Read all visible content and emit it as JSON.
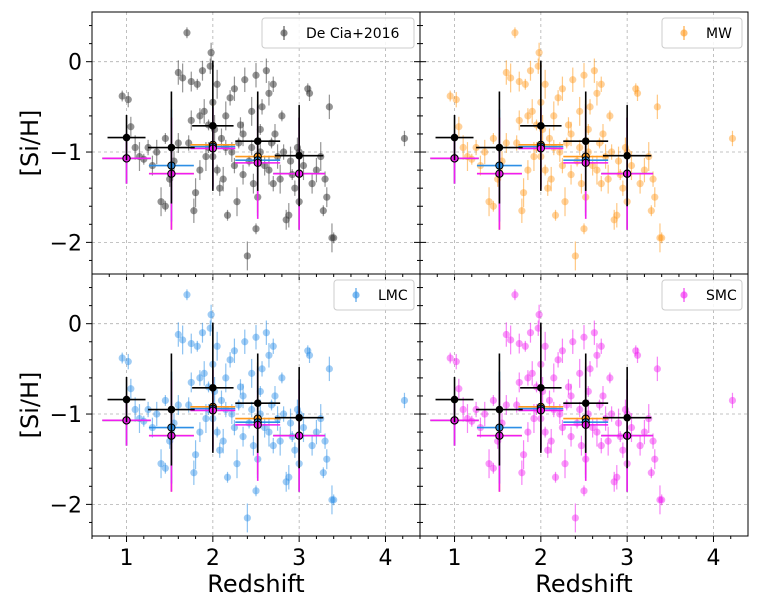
{
  "colors": {
    "MW": "#ff9a1f",
    "LMC": "#2d8fe6",
    "SMC": "#f01ef0",
    "DeCia": "#3c3c3c",
    "binned": "#000000",
    "zero_mw": "#ff9a1f",
    "zero_lmc": "#2d8fe6",
    "zero_smc": "#f01ef0"
  },
  "chart_data": {
    "type": "scatter",
    "layout": "2x2 shared axes",
    "xlabel": "Redshift",
    "ylabel": "[Si/H]",
    "xlim": [
      0.6,
      4.4
    ],
    "ylim": [
      -2.35,
      0.55
    ],
    "xticks": [
      1,
      2,
      3,
      4
    ],
    "yticks": [
      0,
      -1,
      -2
    ],
    "xtick_labels": [
      "1",
      "2",
      "3",
      "4"
    ],
    "ytick_labels": [
      "0",
      "−1",
      "−2"
    ],
    "grid": true,
    "panels": [
      {
        "legend": "De Cia+2016",
        "color_key": "DeCia",
        "legend_position": "top-right"
      },
      {
        "legend": "MW",
        "color_key": "MW",
        "legend_position": "top-right"
      },
      {
        "legend": "LMC",
        "color_key": "LMC",
        "legend_position": "top-right"
      },
      {
        "legend": "SMC",
        "color_key": "SMC",
        "legend_position": "top-right"
      }
    ],
    "scatter_points": [
      [
        0.95,
        -0.38
      ],
      [
        1.02,
        -0.42
      ],
      [
        1.05,
        -0.72
      ],
      [
        1.1,
        -0.95
      ],
      [
        1.15,
        -1.05
      ],
      [
        1.2,
        -1.08
      ],
      [
        1.25,
        -0.95
      ],
      [
        1.3,
        -1.15
      ],
      [
        1.35,
        -1.0
      ],
      [
        1.4,
        -1.55
      ],
      [
        1.45,
        -1.6
      ],
      [
        1.5,
        -1.3
      ],
      [
        1.55,
        -1.1
      ],
      [
        1.6,
        -0.12
      ],
      [
        1.65,
        -0.18
      ],
      [
        1.7,
        0.32
      ],
      [
        1.72,
        -0.9
      ],
      [
        1.75,
        -0.22
      ],
      [
        1.78,
        -1.65
      ],
      [
        1.8,
        -1.45
      ],
      [
        1.82,
        -0.25
      ],
      [
        1.85,
        -0.6
      ],
      [
        1.88,
        -0.1
      ],
      [
        1.9,
        -0.55
      ],
      [
        1.92,
        -1.05
      ],
      [
        1.95,
        -0.95
      ],
      [
        1.97,
        -0.05
      ],
      [
        1.98,
        0.1
      ],
      [
        2.0,
        -0.45
      ],
      [
        2.02,
        -0.75
      ],
      [
        2.05,
        -1.2
      ],
      [
        2.08,
        -1.4
      ],
      [
        2.1,
        -0.85
      ],
      [
        2.12,
        -1.3
      ],
      [
        2.15,
        -0.6
      ],
      [
        2.17,
        -1.7
      ],
      [
        2.2,
        -0.4
      ],
      [
        2.22,
        -1.0
      ],
      [
        2.25,
        -0.3
      ],
      [
        2.28,
        -1.55
      ],
      [
        2.3,
        -0.9
      ],
      [
        2.32,
        -0.7
      ],
      [
        2.35,
        -1.25
      ],
      [
        2.37,
        -0.2
      ],
      [
        2.4,
        -2.15
      ],
      [
        2.42,
        -1.1
      ],
      [
        2.45,
        -0.95
      ],
      [
        2.47,
        -1.35
      ],
      [
        2.5,
        -0.15
      ],
      [
        2.52,
        -1.5
      ],
      [
        2.55,
        -0.75
      ],
      [
        2.57,
        -0.5
      ],
      [
        2.6,
        -1.15
      ],
      [
        2.62,
        -0.1
      ],
      [
        2.65,
        -1.2
      ],
      [
        2.68,
        -0.9
      ],
      [
        2.7,
        -1.35
      ],
      [
        2.72,
        -0.8
      ],
      [
        2.75,
        -1.05
      ],
      [
        2.78,
        -1.3
      ],
      [
        2.8,
        -0.6
      ],
      [
        2.82,
        -1.0
      ],
      [
        2.85,
        -1.75
      ],
      [
        2.88,
        -1.7
      ],
      [
        2.9,
        -1.1
      ],
      [
        2.92,
        -1.25
      ],
      [
        2.95,
        -1.4
      ],
      [
        2.98,
        -0.95
      ],
      [
        3.0,
        -1.55
      ],
      [
        3.05,
        -1.15
      ],
      [
        3.1,
        -0.3
      ],
      [
        3.12,
        -0.35
      ],
      [
        3.15,
        -1.35
      ],
      [
        3.2,
        -1.2
      ],
      [
        3.25,
        -1.05
      ],
      [
        3.28,
        -1.65
      ],
      [
        3.3,
        -1.3
      ],
      [
        3.32,
        -1.5
      ],
      [
        3.35,
        -0.5
      ],
      [
        3.38,
        -1.95
      ],
      [
        3.4,
        -1.95
      ],
      [
        4.22,
        -0.85
      ],
      [
        1.6,
        -0.9
      ],
      [
        2.0,
        -1.05
      ],
      [
        2.45,
        -0.55
      ],
      [
        1.95,
        -0.7
      ],
      [
        2.25,
        -1.15
      ],
      [
        1.85,
        -1.2
      ],
      [
        2.65,
        -0.35
      ],
      [
        2.55,
        -1.0
      ],
      [
        1.45,
        -0.85
      ],
      [
        2.15,
        -0.95
      ],
      [
        1.75,
        -0.65
      ],
      [
        2.35,
        -0.8
      ],
      [
        2.05,
        -0.25
      ],
      [
        2.5,
        -1.85
      ],
      [
        2.7,
        -0.25
      ],
      [
        3.0,
        -1.0
      ]
    ],
    "binned_points": [
      {
        "x": 1.0,
        "y": -0.84,
        "xerr": 0.22,
        "yerr": 0.25
      },
      {
        "x": 1.52,
        "y": -0.95,
        "xerr": 0.27,
        "yerr": 0.62
      },
      {
        "x": 2.0,
        "y": -0.71,
        "xerr": 0.24,
        "yerr": 0.72
      },
      {
        "x": 2.52,
        "y": -0.88,
        "xerr": 0.26,
        "yerr": 0.55
      },
      {
        "x": 3.0,
        "y": -1.04,
        "xerr": 0.28,
        "yerr": 0.56
      }
    ],
    "zeroed_points": [
      {
        "x": 1.0,
        "dx": 0.28,
        "MW": {
          "y": -1.07,
          "yerr": 0.28
        },
        "LMC": {
          "y": -1.07,
          "yerr": 0.28
        },
        "SMC": {
          "y": -1.07,
          "yerr": 0.28
        }
      },
      {
        "x": 1.52,
        "dx": 0.26,
        "MW": {
          "y": -1.24,
          "yerr": 0.62
        },
        "LMC": {
          "y": -1.15,
          "yerr": 0.62
        },
        "SMC": {
          "y": -1.24,
          "yerr": 0.62
        }
      },
      {
        "x": 2.0,
        "dx": 0.26,
        "MW": {
          "y": -0.92,
          "yerr": 0.45
        },
        "LMC": {
          "y": -0.94,
          "yerr": 0.45
        },
        "SMC": {
          "y": -0.96,
          "yerr": 0.45
        }
      },
      {
        "x": 2.52,
        "dx": 0.26,
        "MW": {
          "y": -1.05,
          "yerr": 0.62
        },
        "LMC": {
          "y": -1.09,
          "yerr": 0.62
        },
        "SMC": {
          "y": -1.12,
          "yerr": 0.62
        }
      },
      {
        "x": 3.0,
        "dx": 0.3,
        "MW": {
          "y": -1.24,
          "yerr": 0.62
        },
        "LMC": {
          "y": -1.24,
          "yerr": 0.62
        },
        "SMC": {
          "y": -1.24,
          "yerr": 0.62
        }
      }
    ]
  }
}
